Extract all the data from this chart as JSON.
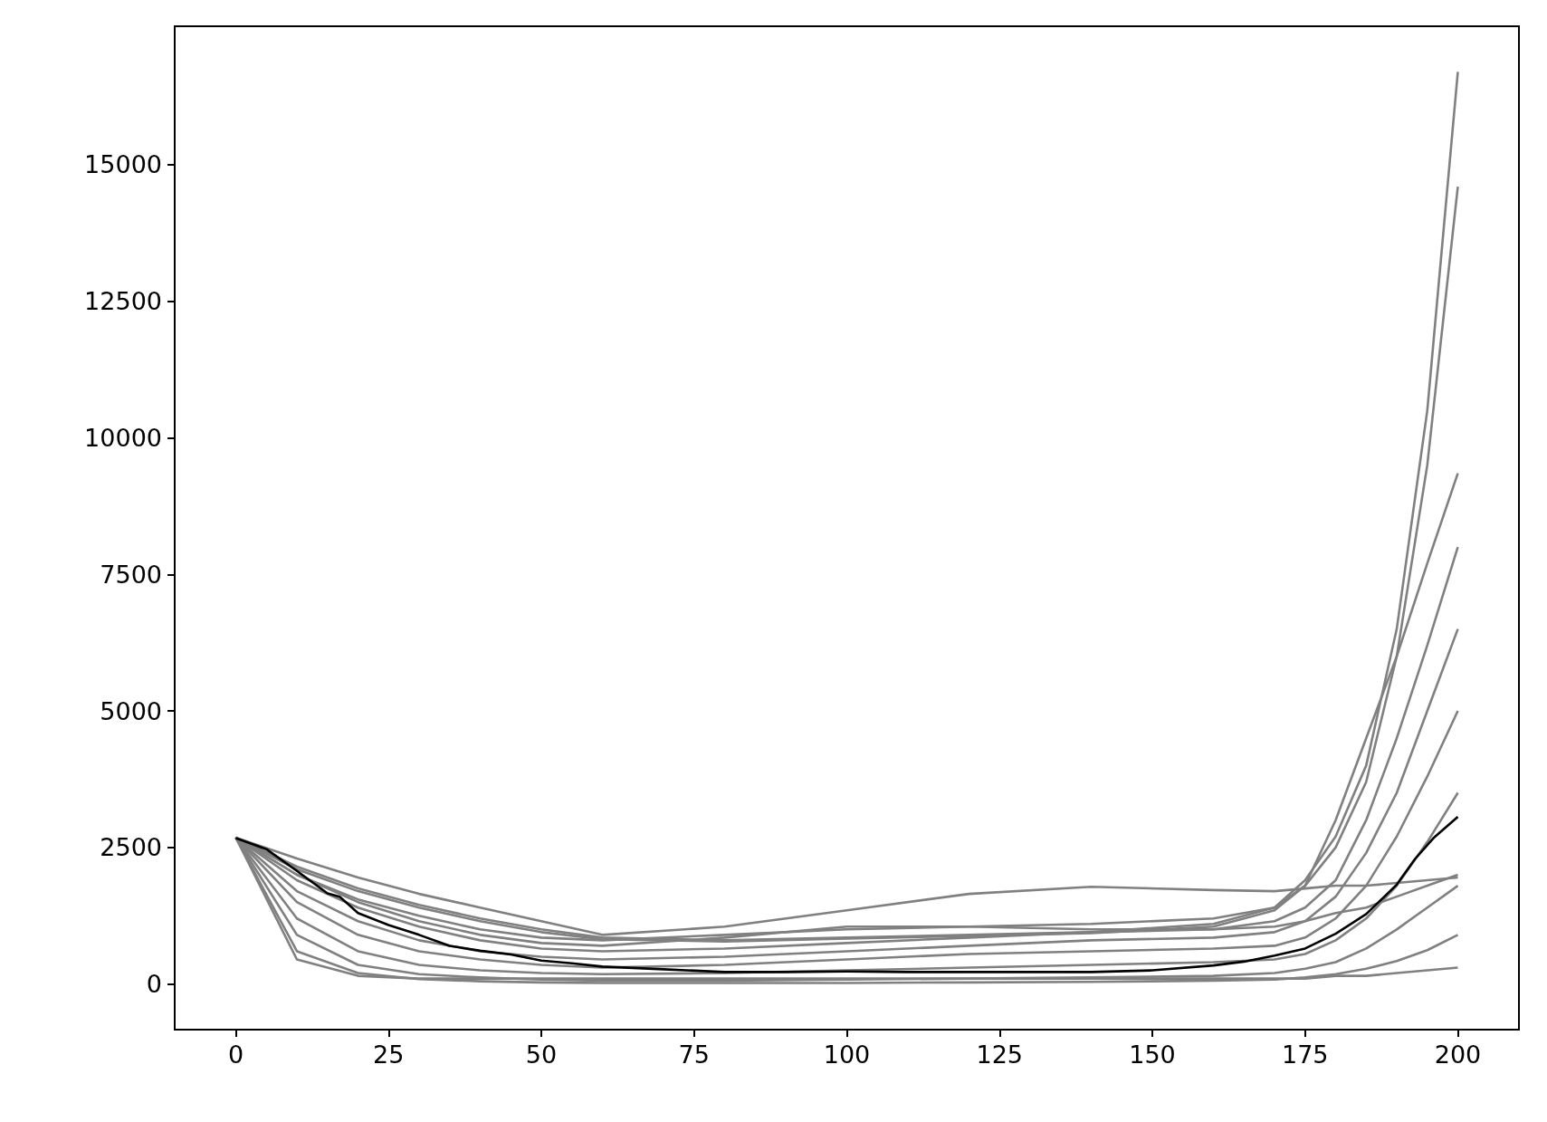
{
  "chart_data": {
    "type": "line",
    "x": [
      0,
      10,
      20,
      30,
      40,
      50,
      60,
      80,
      100,
      120,
      140,
      160,
      170,
      175,
      180,
      185,
      190,
      195,
      200
    ],
    "xlim": [
      -10,
      210
    ],
    "xticks": [
      0,
      25,
      50,
      75,
      100,
      125,
      150,
      175,
      200
    ],
    "ylim": [
      -835,
      17535
    ],
    "yticks": [
      0,
      2500,
      5000,
      7500,
      10000,
      12500,
      15000
    ],
    "grid": false,
    "marker": "none",
    "line_style": "solid",
    "series": [
      {
        "color": "#808080",
        "values": [
          2680,
          2150,
          1750,
          1450,
          1200,
          1000,
          850,
          800,
          850,
          900,
          950,
          1100,
          1400,
          1900,
          2700,
          4000,
          6500,
          10500,
          16700
        ]
      },
      {
        "color": "#808080",
        "values": [
          2680,
          2100,
          1700,
          1400,
          1150,
          950,
          820,
          780,
          830,
          880,
          930,
          1050,
          1350,
          1800,
          2500,
          3700,
          6000,
          9500,
          14600
        ]
      },
      {
        "color": "#808080",
        "values": [
          2680,
          2000,
          1550,
          1250,
          1000,
          850,
          800,
          900,
          1000,
          1050,
          1100,
          1200,
          1400,
          1800,
          3000,
          4500,
          6000,
          7700,
          9350
        ]
      },
      {
        "color": "#808080",
        "values": [
          2680,
          2300,
          1950,
          1650,
          1400,
          1150,
          900,
          1050,
          1350,
          1650,
          1780,
          1720,
          1700,
          1750,
          1800,
          1800,
          1850,
          1900,
          1950
        ]
      },
      {
        "color": "#808080",
        "values": [
          2680,
          1900,
          1400,
          1050,
          800,
          650,
          600,
          650,
          750,
          850,
          950,
          1000,
          1150,
          1400,
          1900,
          3000,
          4500,
          6200,
          8000
        ]
      },
      {
        "color": "#808080",
        "values": [
          2680,
          2000,
          1500,
          1150,
          900,
          750,
          700,
          850,
          1050,
          1050,
          1000,
          1000,
          1050,
          1150,
          1300,
          1400,
          1600,
          1800,
          2000
        ]
      },
      {
        "color": "#808080",
        "values": [
          2680,
          1700,
          1150,
          800,
          600,
          500,
          450,
          500,
          600,
          700,
          800,
          850,
          950,
          1150,
          1600,
          2400,
          3500,
          5000,
          6500
        ]
      },
      {
        "color": "#808080",
        "values": [
          2680,
          1500,
          900,
          600,
          450,
          350,
          300,
          350,
          450,
          550,
          600,
          650,
          700,
          850,
          1200,
          1800,
          2700,
          3800,
          5000
        ]
      },
      {
        "color": "#808080",
        "values": [
          2680,
          1200,
          600,
          350,
          250,
          200,
          180,
          200,
          250,
          300,
          350,
          400,
          450,
          550,
          800,
          1200,
          1800,
          2600,
          3500
        ]
      },
      {
        "color": "#808080",
        "values": [
          2680,
          900,
          350,
          180,
          120,
          80,
          60,
          60,
          80,
          100,
          120,
          150,
          200,
          280,
          400,
          650,
          1000,
          1400,
          1800
        ]
      },
      {
        "color": "#808080",
        "values": [
          2680,
          600,
          200,
          90,
          50,
          30,
          20,
          20,
          20,
          30,
          40,
          60,
          80,
          120,
          180,
          280,
          420,
          620,
          900
        ]
      },
      {
        "color": "#808080",
        "values": [
          2680,
          450,
          150,
          100,
          100,
          100,
          100,
          100,
          100,
          100,
          100,
          100,
          100,
          100,
          150,
          150,
          200,
          250,
          300
        ]
      },
      {
        "color": "#000000",
        "x": [
          0,
          5,
          10,
          15,
          17,
          20,
          25,
          30,
          35,
          40,
          45,
          50,
          55,
          60,
          70,
          80,
          90,
          100,
          110,
          120,
          130,
          140,
          150,
          160,
          165,
          170,
          175,
          180,
          185,
          190,
          193,
          196,
          200
        ],
        "values": [
          2670,
          2470,
          2070,
          1660,
          1600,
          1300,
          1080,
          900,
          700,
          610,
          540,
          430,
          380,
          320,
          270,
          220,
          220,
          230,
          220,
          220,
          220,
          220,
          250,
          340,
          410,
          520,
          650,
          920,
          1280,
          1820,
          2290,
          2670,
          3060
        ]
      }
    ]
  }
}
